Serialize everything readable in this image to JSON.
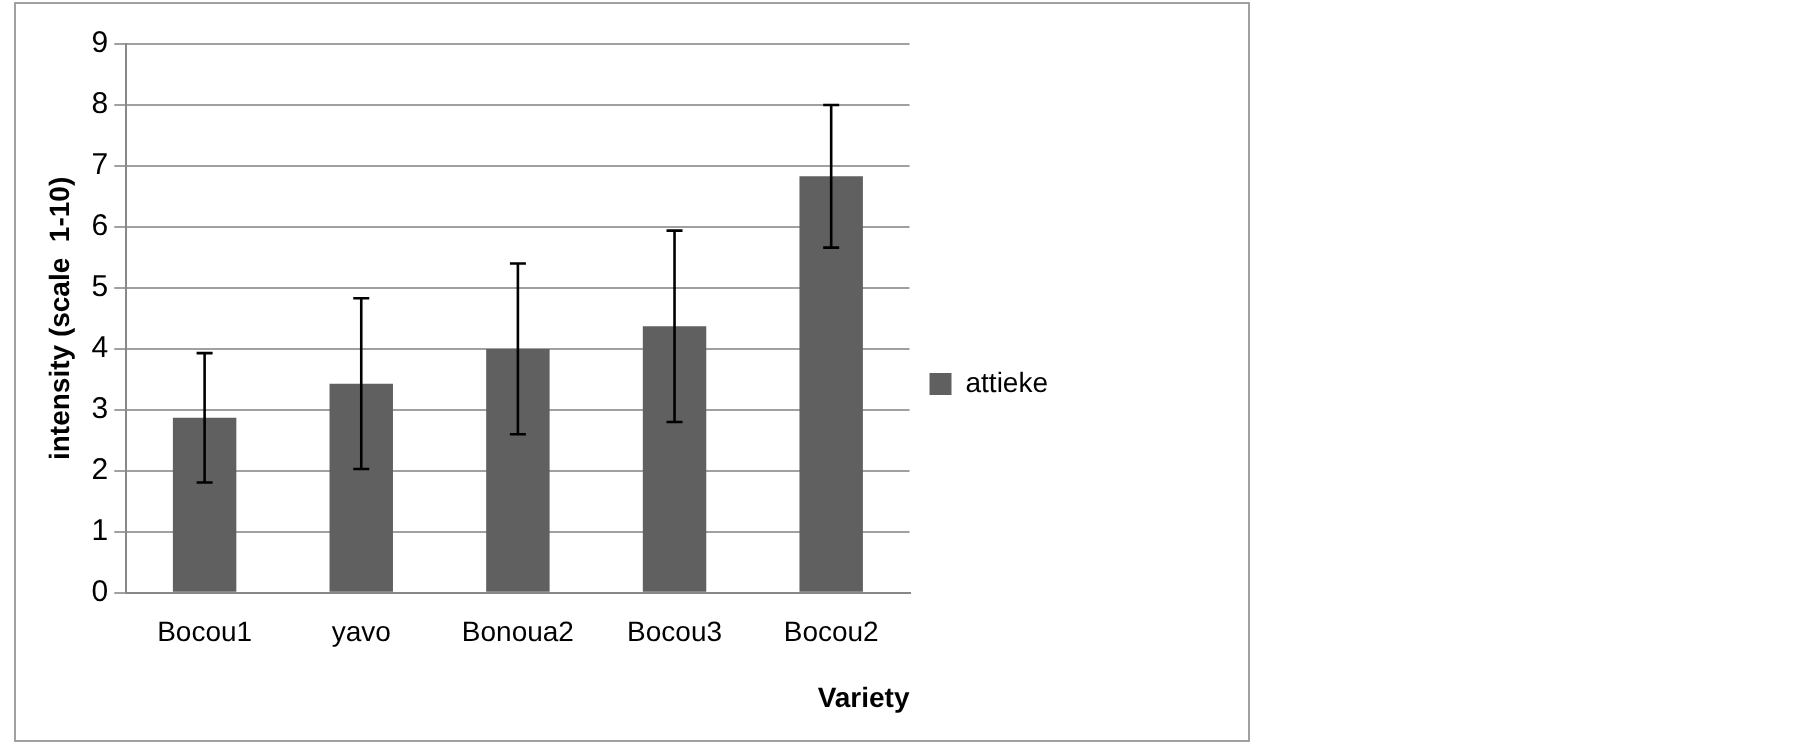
{
  "chart_data": {
    "type": "bar",
    "xlabel": "Variety",
    "ylabel": "intensity (scale  1-10)",
    "categories": [
      "Bocou1",
      "yavo",
      "Bonoua2",
      "Bocou3",
      "Bocou2"
    ],
    "series": [
      {
        "name": "attieke",
        "color": "#606060",
        "values": [
          2.87,
          3.43,
          4.0,
          4.37,
          6.83
        ],
        "errors": [
          1.06,
          1.4,
          1.4,
          1.57,
          1.17
        ]
      }
    ],
    "ylim": [
      0,
      9
    ],
    "yticks": [
      0,
      1,
      2,
      3,
      4,
      5,
      6,
      7,
      8,
      9
    ],
    "grid": "y",
    "legend": "right"
  }
}
